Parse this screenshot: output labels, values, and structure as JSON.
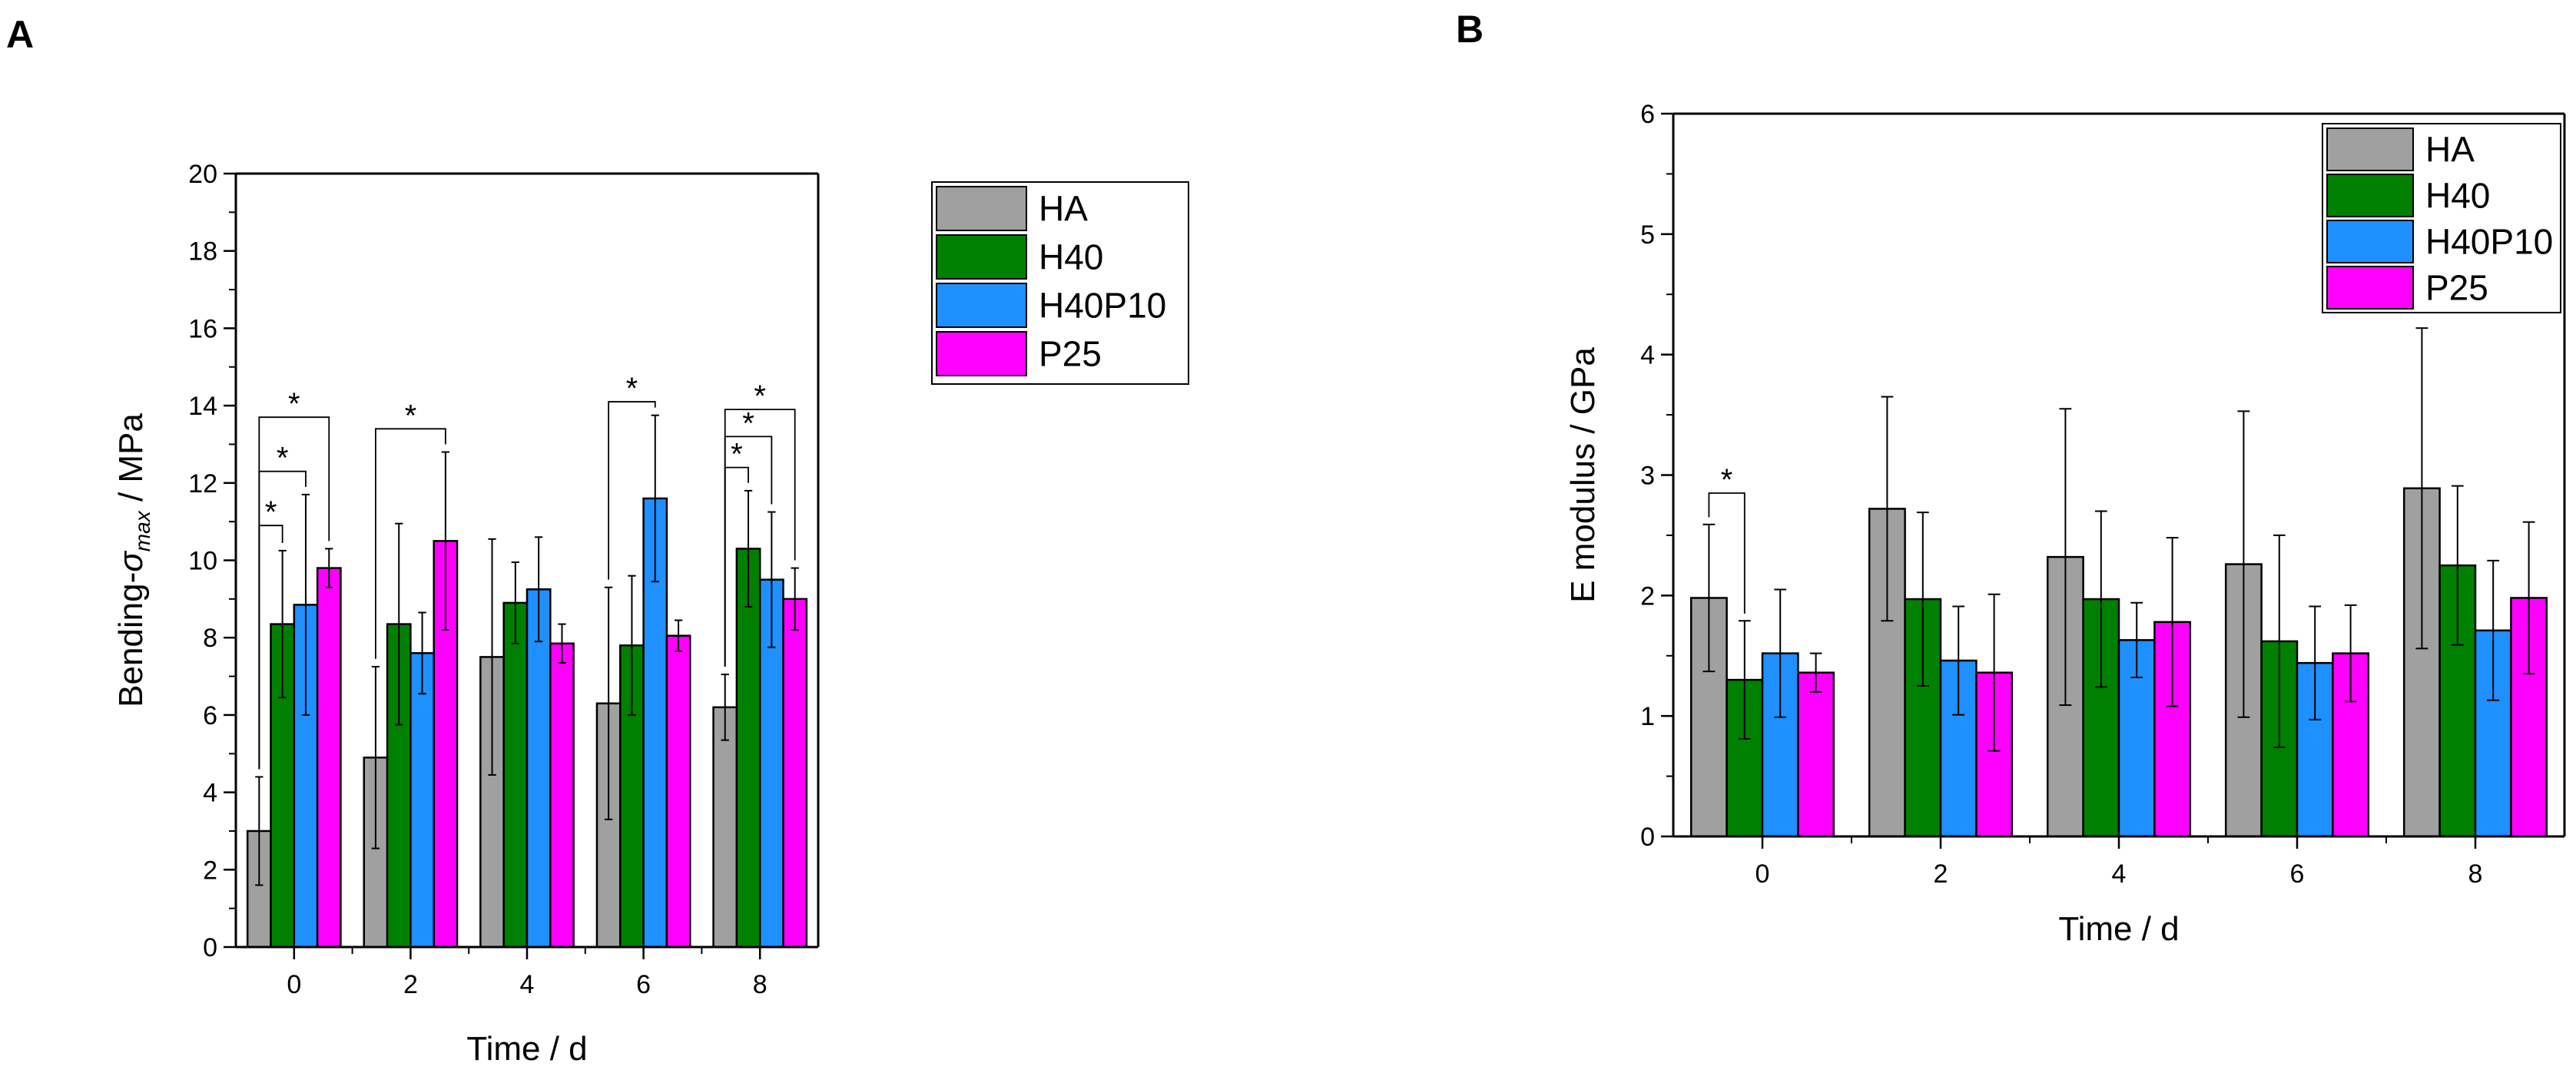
{
  "panels": [
    "A",
    "B"
  ],
  "legend_entries": [
    "HA",
    "H40",
    "H40P10",
    "P25"
  ],
  "colors": {
    "HA": "#a0a0a0",
    "H40": "#008000",
    "H40P10": "#1e90ff",
    "P25": "#ff00ff"
  },
  "chart_data": [
    {
      "type": "bar",
      "panel": "A",
      "xlabel": "Time / d",
      "ylabel_prefix": "Bending-",
      "ylabel_symbol": "σ",
      "ylabel_subscript": "max",
      "ylabel_suffix": " / MPa",
      "categories": [
        "0",
        "2",
        "4",
        "6",
        "8"
      ],
      "ylim": [
        0,
        20
      ],
      "yticks": [
        "0",
        "2",
        "4",
        "6",
        "8",
        "10",
        "12",
        "14",
        "16",
        "18",
        "20"
      ],
      "legend_position": "top-right",
      "series": [
        {
          "name": "HA",
          "values": [
            3.0,
            4.9,
            7.5,
            6.3,
            6.2
          ],
          "errors": [
            1.4,
            2.35,
            3.05,
            3.0,
            0.85
          ]
        },
        {
          "name": "H40",
          "values": [
            8.35,
            8.35,
            8.9,
            7.8,
            10.3
          ],
          "errors": [
            1.9,
            2.6,
            1.05,
            1.8,
            1.5
          ]
        },
        {
          "name": "H40P10",
          "values": [
            8.85,
            7.6,
            9.25,
            11.6,
            9.5
          ],
          "errors": [
            2.85,
            1.05,
            1.35,
            2.15,
            1.75
          ]
        },
        {
          "name": "P25",
          "values": [
            9.8,
            10.5,
            7.85,
            8.05,
            9.0
          ],
          "errors": [
            0.5,
            2.3,
            0.5,
            0.4,
            0.8
          ]
        }
      ],
      "significance": [
        {
          "category": 0,
          "from": 0,
          "to": 1,
          "y": 10.9
        },
        {
          "category": 0,
          "from": 0,
          "to": 2,
          "y": 12.3
        },
        {
          "category": 0,
          "from": 0,
          "to": 3,
          "y": 13.7
        },
        {
          "category": 1,
          "from": 0,
          "to": 3,
          "y": 13.4
        },
        {
          "category": 3,
          "from": 0,
          "to": 2,
          "y": 14.1
        },
        {
          "category": 4,
          "from": 0,
          "to": 1,
          "y": 12.4
        },
        {
          "category": 4,
          "from": 0,
          "to": 2,
          "y": 13.2
        },
        {
          "category": 4,
          "from": 0,
          "to": 3,
          "y": 13.9
        }
      ],
      "significance_label": "*"
    },
    {
      "type": "bar",
      "panel": "B",
      "xlabel": "Time / d",
      "ylabel": "E modulus / GPa",
      "categories": [
        "0",
        "2",
        "4",
        "6",
        "8"
      ],
      "ylim": [
        0,
        6
      ],
      "yticks": [
        "0",
        "1",
        "2",
        "3",
        "4",
        "5",
        "6"
      ],
      "legend_position": "top-right",
      "series": [
        {
          "name": "HA",
          "values": [
            1.98,
            2.72,
            2.32,
            2.26,
            2.89
          ],
          "errors": [
            0.61,
            0.93,
            1.23,
            1.27,
            1.33
          ]
        },
        {
          "name": "H40",
          "values": [
            1.3,
            1.97,
            1.97,
            1.62,
            2.25
          ],
          "errors": [
            0.49,
            0.72,
            0.73,
            0.88,
            0.66
          ]
        },
        {
          "name": "H40P10",
          "values": [
            1.52,
            1.46,
            1.63,
            1.44,
            1.71
          ],
          "errors": [
            0.53,
            0.45,
            0.31,
            0.47,
            0.58
          ]
        },
        {
          "name": "P25",
          "values": [
            1.36,
            1.36,
            1.78,
            1.52,
            1.98
          ],
          "errors": [
            0.16,
            0.65,
            0.7,
            0.4,
            0.63
          ]
        }
      ],
      "significance": [
        {
          "category": 0,
          "from": 0,
          "to": 1,
          "y": 2.85
        }
      ],
      "significance_label": "*"
    }
  ]
}
